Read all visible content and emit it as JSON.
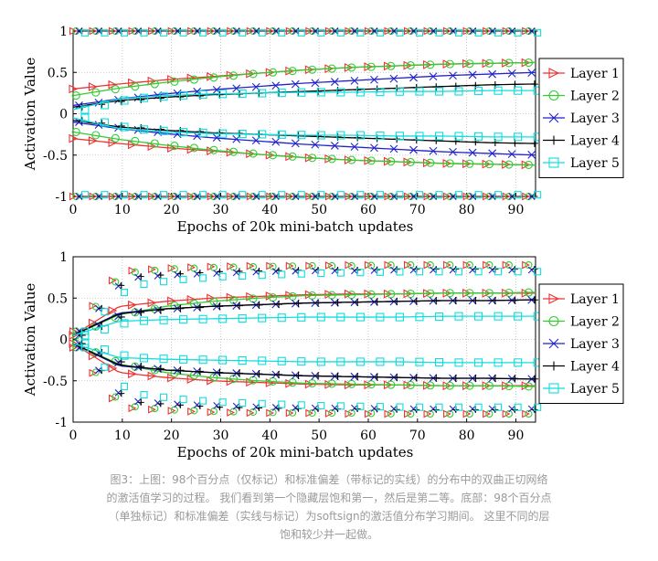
{
  "chart_data": [
    {
      "type": "line",
      "title": "",
      "xlabel": "Epochs of 20k mini-batch updates",
      "ylabel": "Activation Value",
      "xlim": [
        0,
        94
      ],
      "ylim": [
        -1,
        1
      ],
      "xticks": [
        "0",
        "10",
        "20",
        "30",
        "40",
        "50",
        "60",
        "70",
        "80",
        "90"
      ],
      "yticks": [
        "1",
        "0.5",
        "0",
        "-0.5",
        "-1"
      ],
      "legend_position": "right",
      "series": [
        {
          "name": "Layer 1",
          "color": "#ee3333",
          "marker": "triangle-right",
          "mean_final": 0.62,
          "mean_start": 0.3,
          "std_upper": [
            0.3,
            0.36,
            0.41,
            0.45,
            0.49,
            0.53,
            0.56,
            0.58,
            0.6,
            0.61,
            0.62
          ],
          "p98_upper": 1.0,
          "p98_lower": -1.0
        },
        {
          "name": "Layer 2",
          "color": "#33cc33",
          "marker": "circle",
          "mean_final": 0.62,
          "mean_start": 0.22,
          "std_upper": [
            0.22,
            0.31,
            0.38,
            0.44,
            0.49,
            0.53,
            0.56,
            0.58,
            0.6,
            0.61,
            0.62
          ],
          "p98_upper": 1.0,
          "p98_lower": -1.0
        },
        {
          "name": "Layer 3",
          "color": "#2222cc",
          "marker": "x",
          "mean_final": 0.5,
          "mean_start": 0.1,
          "std_upper": [
            0.1,
            0.18,
            0.24,
            0.29,
            0.33,
            0.37,
            0.4,
            0.43,
            0.46,
            0.48,
            0.5
          ],
          "p98_upper": 1.0,
          "p98_lower": -1.0
        },
        {
          "name": "Layer 4",
          "color": "#000000",
          "marker": "plus",
          "mean_final": 0.36,
          "mean_start": 0.08,
          "std_upper": [
            0.08,
            0.16,
            0.2,
            0.23,
            0.25,
            0.27,
            0.29,
            0.31,
            0.33,
            0.35,
            0.36
          ],
          "p98_upper": 1.0,
          "p98_lower": -1.0
        },
        {
          "name": "Layer 5",
          "color": "#11dddd",
          "marker": "square",
          "mean_final": 0.28,
          "mean_start": 0.05,
          "std_upper": [
            0.05,
            0.18,
            0.22,
            0.24,
            0.25,
            0.26,
            0.26,
            0.27,
            0.27,
            0.28,
            0.28
          ],
          "p98_upper": 0.98,
          "p98_lower": -0.98
        }
      ]
    },
    {
      "type": "line",
      "title": "",
      "xlabel": "Epochs of 20k mini-batch updates",
      "ylabel": "Activation Value",
      "xlim": [
        0,
        94
      ],
      "ylim": [
        -1,
        1
      ],
      "xticks": [
        "0",
        "10",
        "20",
        "30",
        "40",
        "50",
        "60",
        "70",
        "80",
        "90"
      ],
      "yticks": [
        "1",
        "0.5",
        "0",
        "-0.5",
        "-1"
      ],
      "legend_position": "right",
      "series": [
        {
          "name": "Layer 1",
          "color": "#ee3333",
          "marker": "triangle-right",
          "std_upper": [
            0.05,
            0.4,
            0.46,
            0.5,
            0.52,
            0.54,
            0.55,
            0.55,
            0.56,
            0.56,
            0.56
          ],
          "p98_upper": [
            0.1,
            0.82,
            0.86,
            0.88,
            0.89,
            0.89,
            0.9,
            0.9,
            0.9,
            0.9,
            0.9
          ]
        },
        {
          "name": "Layer 2",
          "color": "#33cc33",
          "marker": "circle",
          "std_upper": [
            0.05,
            0.3,
            0.4,
            0.46,
            0.5,
            0.53,
            0.54,
            0.55,
            0.56,
            0.56,
            0.57
          ],
          "p98_upper": [
            0.1,
            0.8,
            0.85,
            0.87,
            0.88,
            0.89,
            0.89,
            0.9,
            0.9,
            0.9,
            0.9
          ]
        },
        {
          "name": "Layer 3",
          "color": "#2222cc",
          "marker": "x",
          "std_upper": [
            0.05,
            0.32,
            0.37,
            0.4,
            0.42,
            0.44,
            0.45,
            0.46,
            0.47,
            0.47,
            0.48
          ],
          "p98_upper": [
            0.1,
            0.74,
            0.78,
            0.8,
            0.82,
            0.83,
            0.83,
            0.84,
            0.84,
            0.84,
            0.84
          ]
        },
        {
          "name": "Layer 4",
          "color": "#000000",
          "marker": "plus",
          "std_upper": [
            0.05,
            0.31,
            0.37,
            0.4,
            0.42,
            0.44,
            0.45,
            0.46,
            0.47,
            0.47,
            0.48
          ],
          "p98_upper": [
            0.1,
            0.75,
            0.79,
            0.82,
            0.83,
            0.84,
            0.84,
            0.85,
            0.85,
            0.85,
            0.85
          ]
        },
        {
          "name": "Layer 5",
          "color": "#11dddd",
          "marker": "square",
          "std_upper": [
            0.05,
            0.22,
            0.24,
            0.25,
            0.26,
            0.27,
            0.27,
            0.27,
            0.28,
            0.28,
            0.28
          ],
          "p98_upper": [
            0.1,
            0.65,
            0.72,
            0.76,
            0.78,
            0.8,
            0.81,
            0.82,
            0.82,
            0.82,
            0.82
          ]
        }
      ]
    }
  ],
  "caption": {
    "line1": "图3：上图：98个百分点（仅标记）和标准偏差（带标记的实线）的分布中的双曲正切网络",
    "line2": "的激活值学习的过程。 我们看到第一个隐藏层饱和第一，然后是第二等。底部：98个百分点",
    "line3": "（单独标记）和标准偏差（实线与标记）为softsign的激活值分布学习期间。 这里不同的层",
    "line4": "饱和较少并一起做。"
  }
}
